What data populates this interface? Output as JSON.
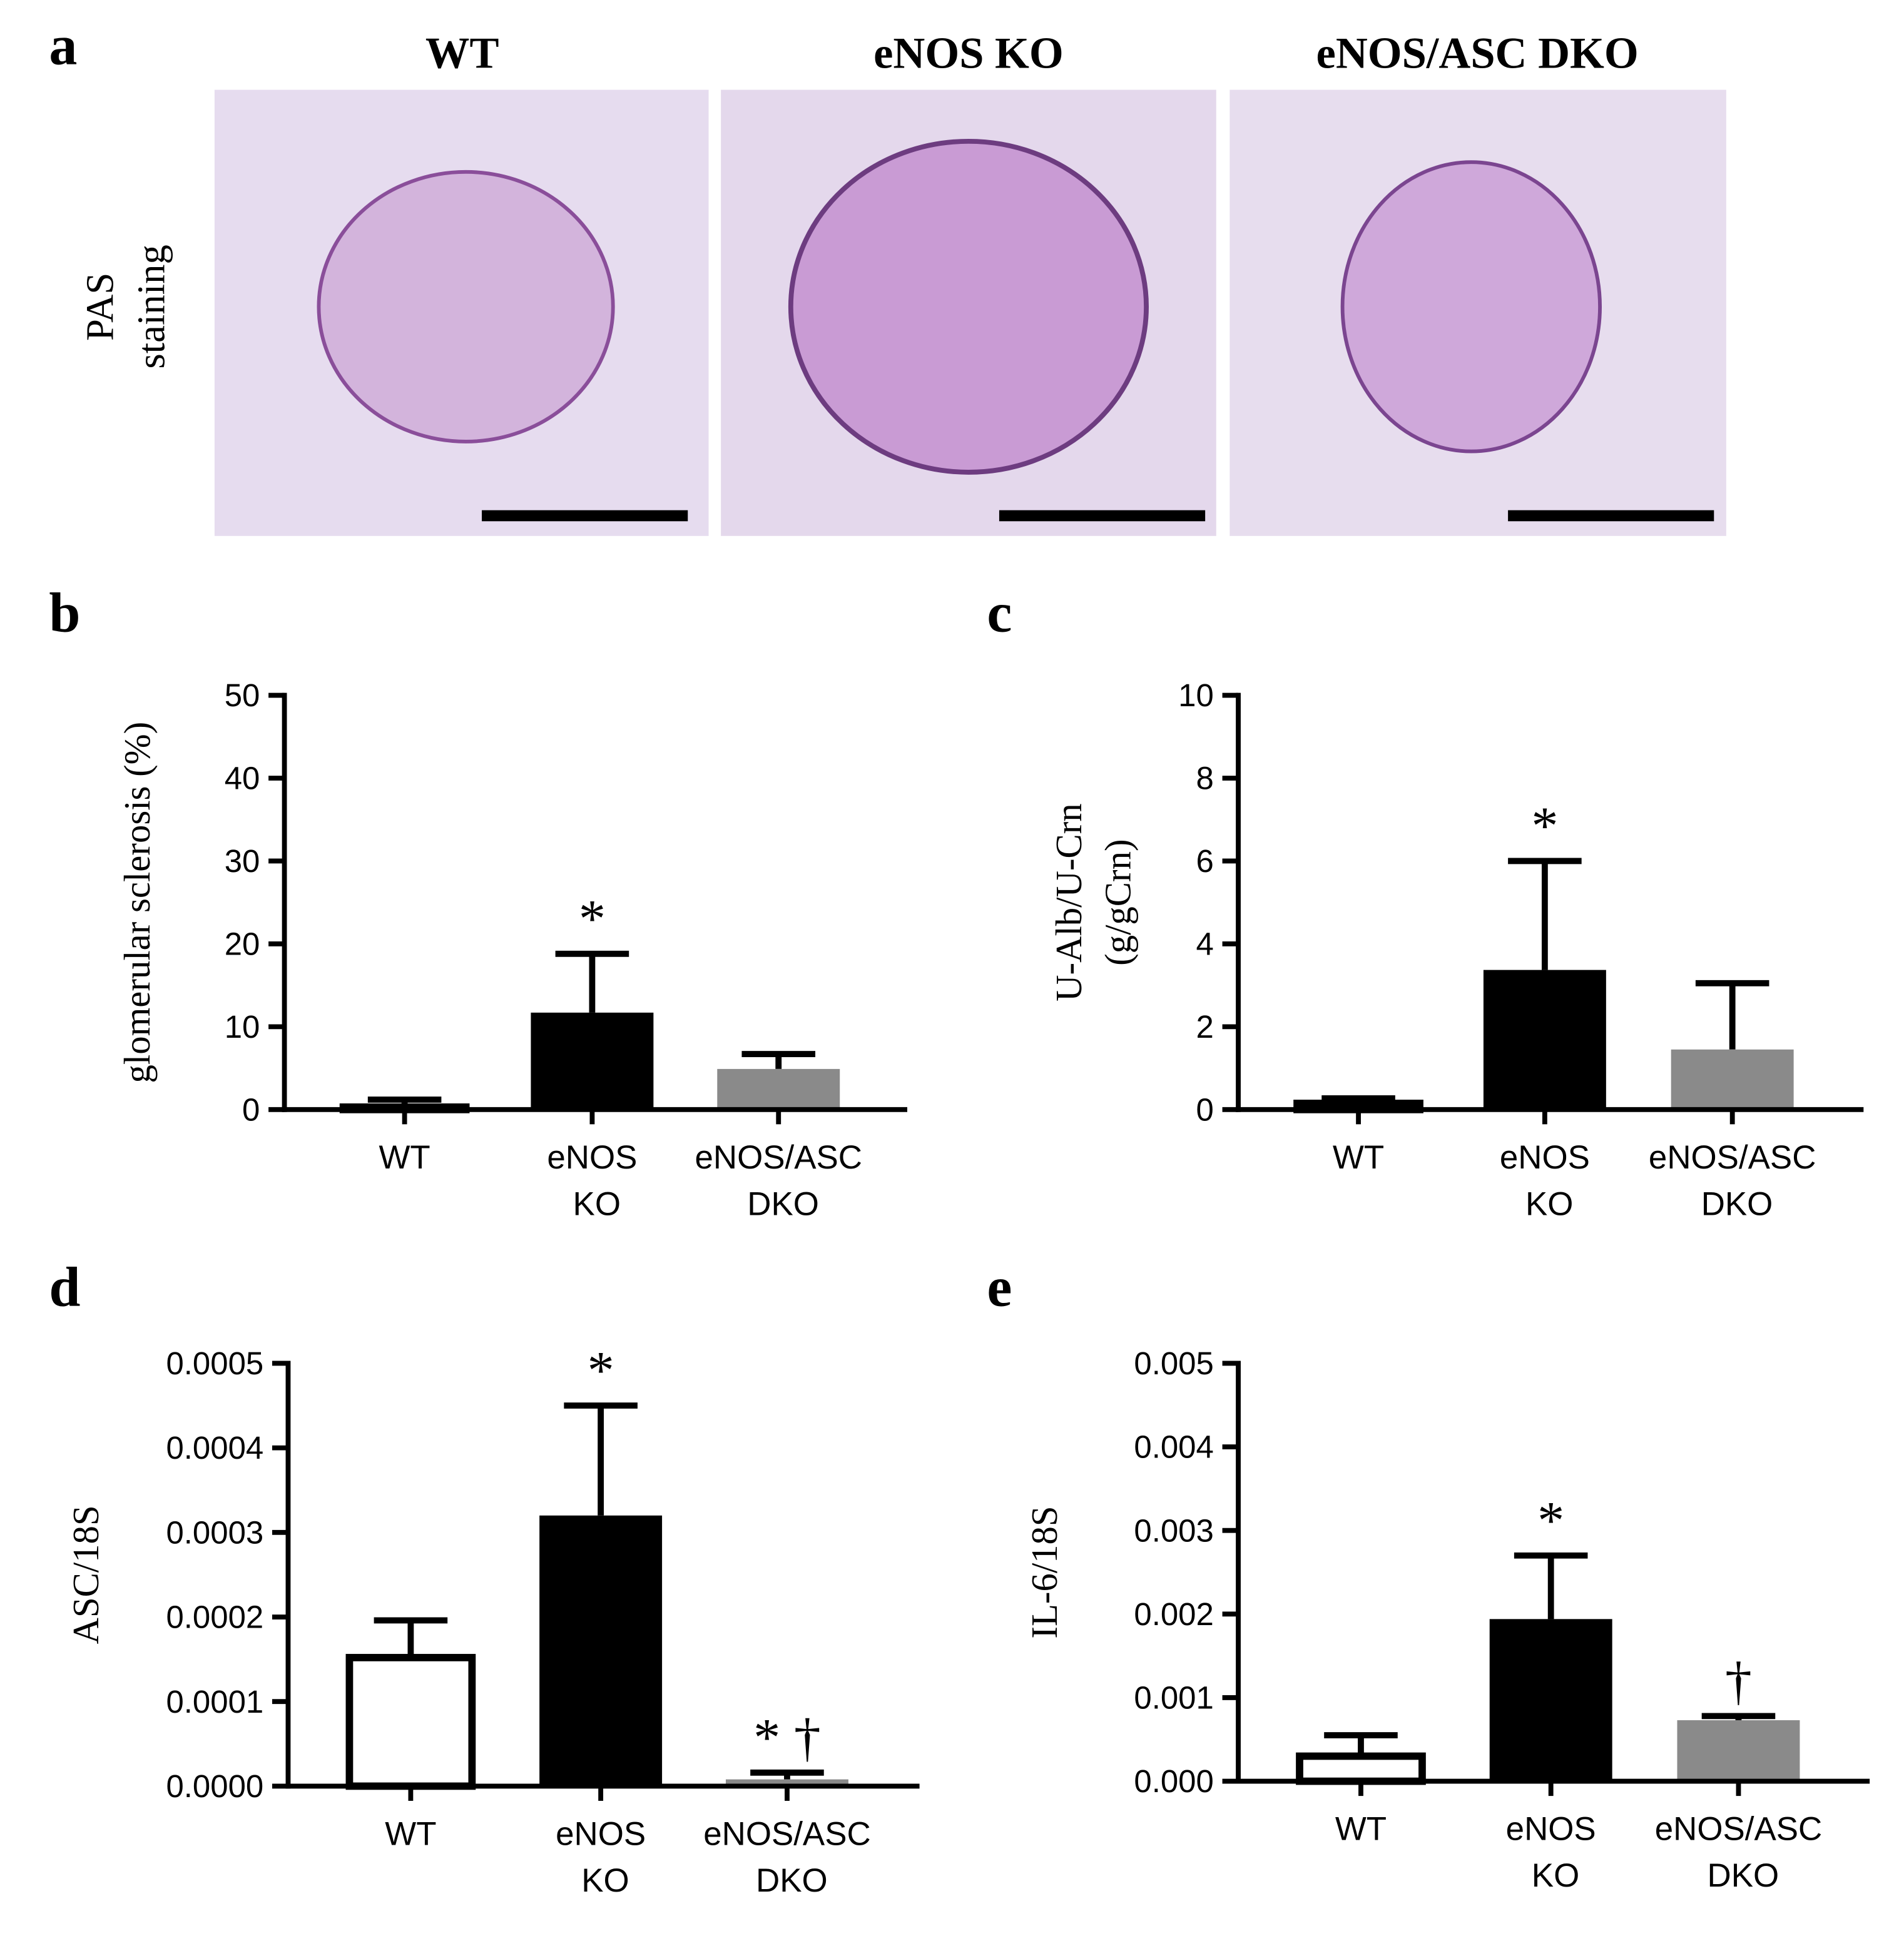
{
  "panel_a": {
    "label": "a",
    "titles": [
      "WT",
      "eNOS KO",
      "eNOS/ASC DKO"
    ],
    "ylabel": [
      "PAS",
      "staining"
    ]
  },
  "chart_data": [
    {
      "type": "bar",
      "panel_label": "b",
      "ylabel": [
        "glomerular  sclerosis (%)"
      ],
      "categories": [
        "WT",
        "eNOS KO",
        "eNOS/ASC DKO"
      ],
      "values": [
        0.3,
        11.7,
        4.9
      ],
      "errors": [
        0.9,
        7.1,
        1.8
      ],
      "colors": [
        "#ffffff",
        "#000000",
        "#8a8a8a"
      ],
      "annotations": [
        null,
        "*",
        null
      ],
      "ylim": [
        0,
        50
      ],
      "yticks": [
        0,
        10,
        20,
        30,
        40,
        50
      ]
    },
    {
      "type": "bar",
      "panel_label": "c",
      "ylabel": [
        "U-Alb/U-Crn",
        "(g/gCrn)"
      ],
      "categories": [
        "WT",
        "eNOS KO",
        "eNOS/ASC DKO"
      ],
      "values": [
        0.15,
        3.37,
        1.45
      ],
      "errors": [
        0.12,
        2.63,
        1.6
      ],
      "colors": [
        "#ffffff",
        "#000000",
        "#8a8a8a"
      ],
      "annotations": [
        null,
        "*",
        null
      ],
      "ylim": [
        0,
        10
      ],
      "yticks": [
        0,
        2,
        4,
        6,
        8,
        10
      ]
    },
    {
      "type": "bar",
      "panel_label": "d",
      "ylabel": [
        "ASC/18S"
      ],
      "categories": [
        "WT",
        "eNOS KO",
        "eNOS/ASC DKO"
      ],
      "values": [
        0.000152,
        0.00032,
        8e-06
      ],
      "errors": [
        4.4e-05,
        0.00013,
        8e-06
      ],
      "colors": [
        "#ffffff",
        "#000000",
        "#8a8a8a"
      ],
      "annotations": [
        null,
        "*",
        "* †"
      ],
      "ylim": [
        0,
        0.0005
      ],
      "yticks": [
        {
          "value": 0,
          "label": "0.0000"
        },
        0.0001,
        0.0002,
        0.0003,
        0.0004,
        0.0005
      ]
    },
    {
      "type": "bar",
      "panel_label": "e",
      "ylabel": [
        "IL-6/18S"
      ],
      "categories": [
        "WT",
        "eNOS KO",
        "eNOS/ASC DKO"
      ],
      "values": [
        0.0003,
        0.00194,
        0.00073
      ],
      "errors": [
        0.00025,
        0.00076,
        5e-05
      ],
      "colors": [
        "#ffffff",
        "#000000",
        "#8a8a8a"
      ],
      "annotations": [
        null,
        "*",
        "†"
      ],
      "ylim": [
        0,
        0.005
      ],
      "yticks": [
        {
          "value": 0,
          "label": "0.000"
        },
        0.001,
        0.002,
        0.003,
        0.004,
        0.005
      ]
    }
  ]
}
